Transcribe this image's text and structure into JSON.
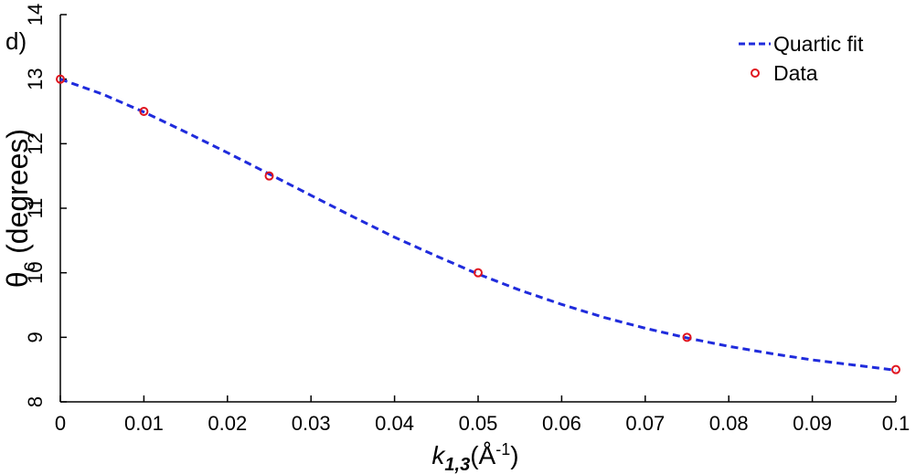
{
  "chart_data": {
    "type": "line",
    "panel_label": "d)",
    "xlabel": {
      "main": "k",
      "sub": "1,3",
      "unit_prefix": "(Å",
      "unit_sup": "-1",
      "unit_suffix": ")"
    },
    "ylabel": {
      "main": "θ",
      "sub": "c",
      "unit": " (degrees)"
    },
    "xlim": [
      0,
      0.1
    ],
    "ylim": [
      8,
      14
    ],
    "xticks": [
      0,
      0.01,
      0.02,
      0.03,
      0.04,
      0.05,
      0.06,
      0.07,
      0.08,
      0.09,
      0.1
    ],
    "xtick_labels": [
      "0",
      "0.01",
      "0.02",
      "0.03",
      "0.04",
      "0.05",
      "0.06",
      "0.07",
      "0.08",
      "0.09",
      "0.1"
    ],
    "yticks": [
      8,
      9,
      10,
      11,
      12,
      13,
      14
    ],
    "ytick_labels": [
      "8",
      "9",
      "10",
      "11",
      "12",
      "13",
      "14"
    ],
    "grid": false,
    "legend_position": "top-right",
    "series": [
      {
        "name": "Quartic fit",
        "style": "dashed-line",
        "color": "#1f2bdc",
        "x": [
          0,
          0.005,
          0.01,
          0.015,
          0.02,
          0.025,
          0.03,
          0.035,
          0.04,
          0.045,
          0.05,
          0.055,
          0.06,
          0.065,
          0.07,
          0.075,
          0.08,
          0.085,
          0.09,
          0.095,
          0.1
        ],
        "y": [
          13.0,
          12.77,
          12.49,
          12.18,
          11.86,
          11.53,
          11.2,
          10.87,
          10.55,
          10.26,
          9.98,
          9.73,
          9.51,
          9.31,
          9.14,
          8.99,
          8.86,
          8.75,
          8.65,
          8.57,
          8.49
        ]
      },
      {
        "name": "Data",
        "style": "open-circle-markers",
        "color": "#e0141e",
        "x": [
          0,
          0.01,
          0.025,
          0.05,
          0.075,
          0.1
        ],
        "y": [
          13.0,
          12.5,
          11.5,
          10.0,
          9.0,
          8.5
        ]
      }
    ]
  }
}
